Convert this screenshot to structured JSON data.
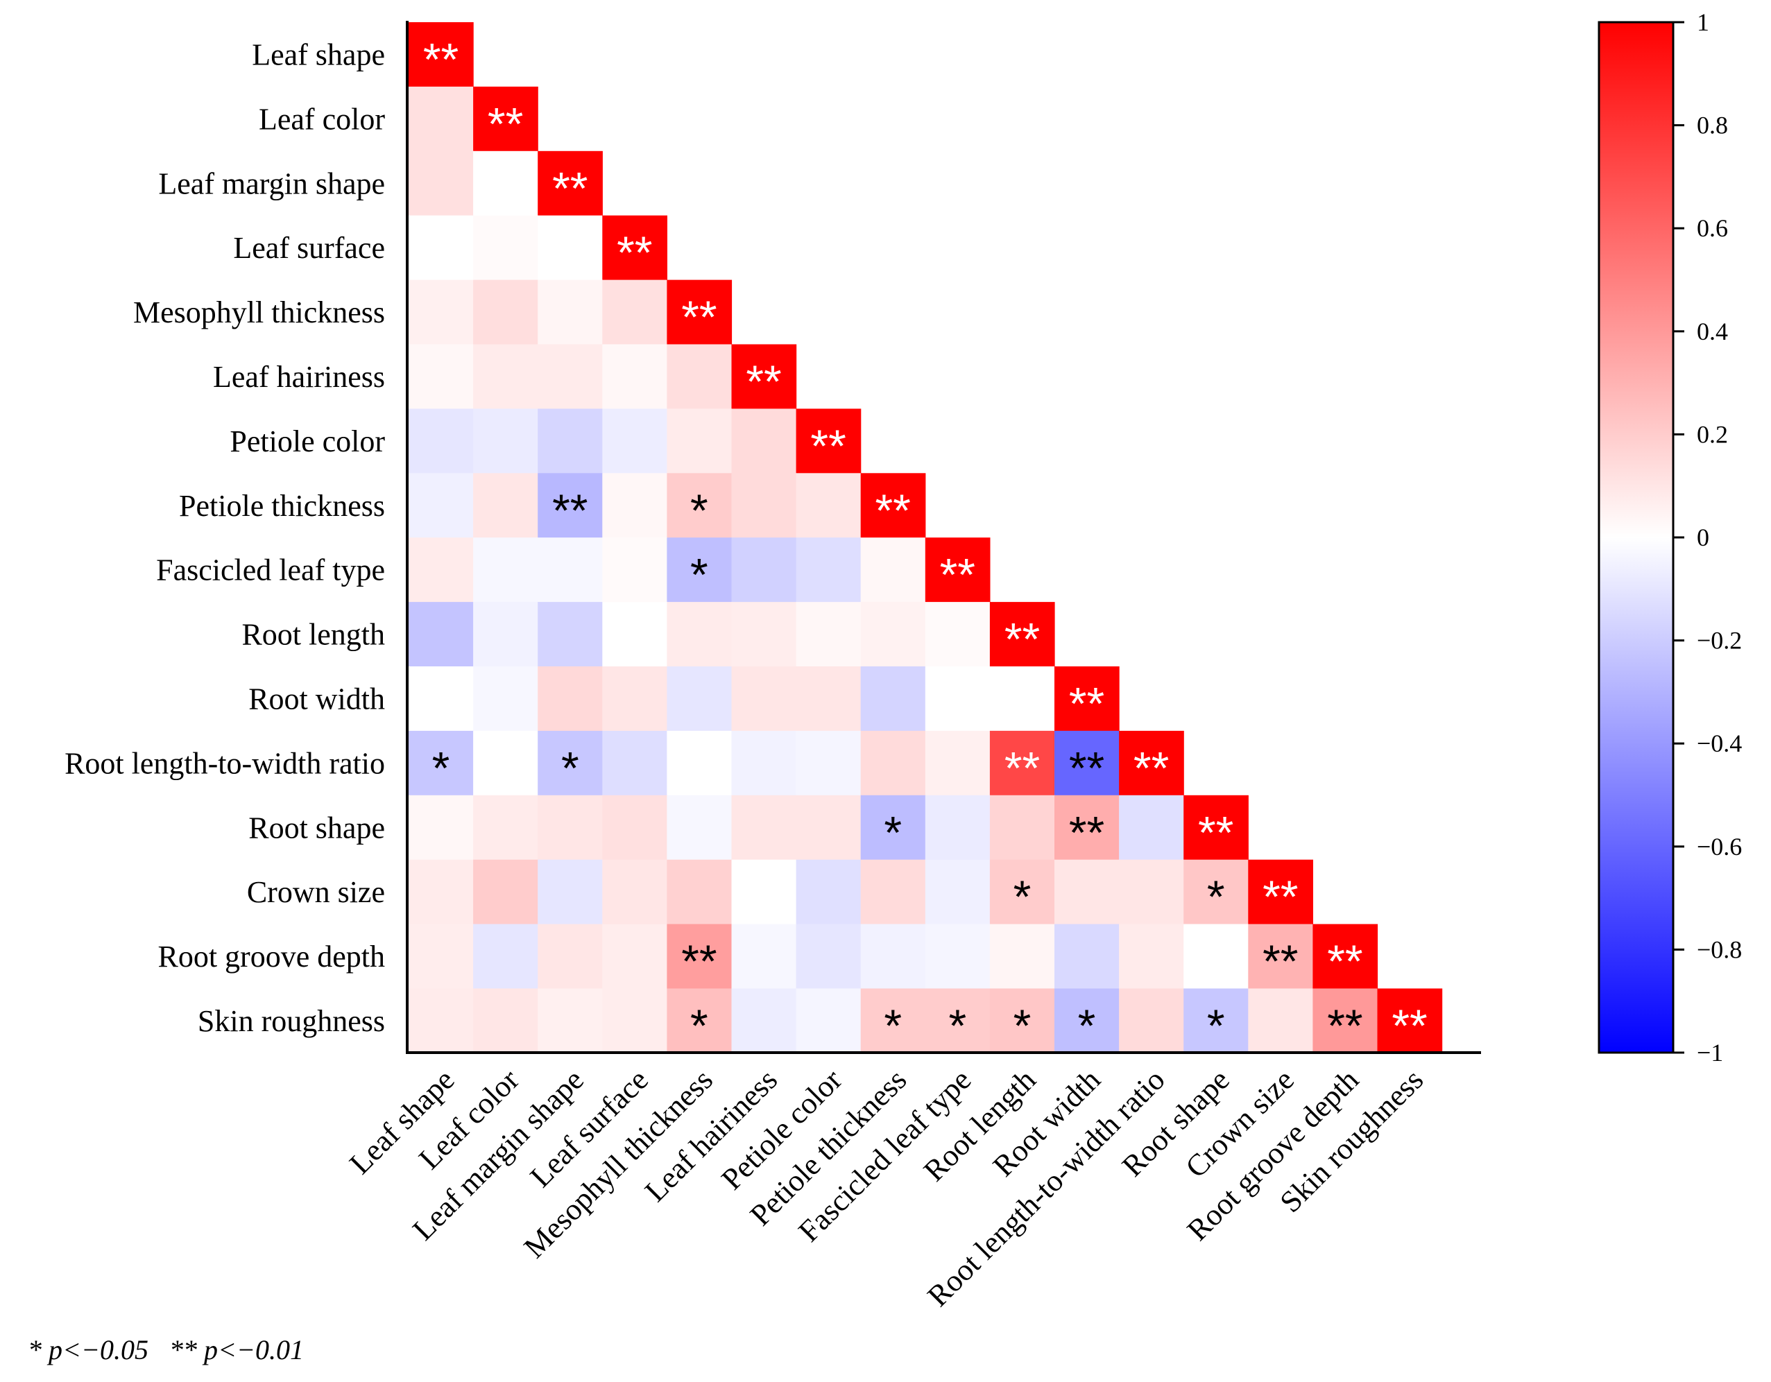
{
  "chart_data": {
    "type": "heatmap",
    "title": "",
    "variables": [
      "Leaf shape",
      "Leaf color",
      "Leaf margin shape",
      "Leaf surface",
      "Mesophyll thickness",
      "Leaf hairiness",
      "Petiole color",
      "Petiole thickness",
      "Fascicled leaf type",
      "Root length",
      "Root width",
      "Root length-to-width ratio",
      "Root shape",
      "Crown size",
      "Root groove depth",
      "Skin roughness"
    ],
    "matrix": [
      [
        1
      ],
      [
        0.12,
        1
      ],
      [
        0.12,
        0.0,
        1
      ],
      [
        0.0,
        0.02,
        0.0,
        1
      ],
      [
        0.06,
        0.13,
        0.04,
        0.12,
        1
      ],
      [
        0.03,
        0.08,
        0.08,
        0.03,
        0.13,
        1
      ],
      [
        -0.1,
        -0.08,
        -0.16,
        -0.07,
        0.08,
        0.14,
        1
      ],
      [
        -0.06,
        0.1,
        -0.28,
        0.03,
        0.2,
        0.14,
        0.1,
        1
      ],
      [
        0.08,
        -0.03,
        -0.03,
        0.02,
        -0.25,
        -0.18,
        -0.13,
        0.03,
        1
      ],
      [
        -0.23,
        -0.05,
        -0.17,
        0.0,
        0.08,
        0.07,
        0.03,
        0.05,
        0.02,
        1
      ],
      [
        0.0,
        -0.03,
        0.15,
        0.1,
        -0.1,
        0.1,
        0.1,
        -0.17,
        0.0,
        0.0,
        1
      ],
      [
        -0.22,
        0.0,
        -0.22,
        -0.13,
        0.0,
        -0.05,
        -0.04,
        0.14,
        0.06,
        0.72,
        -0.6,
        1
      ],
      [
        0.03,
        0.08,
        0.1,
        0.12,
        -0.03,
        0.1,
        0.1,
        -0.26,
        -0.08,
        0.17,
        0.32,
        -0.12,
        1
      ],
      [
        0.08,
        0.2,
        -0.1,
        0.1,
        0.18,
        0.0,
        -0.12,
        0.14,
        -0.06,
        0.2,
        0.1,
        0.1,
        0.22,
        1
      ],
      [
        0.07,
        -0.1,
        0.1,
        0.07,
        0.38,
        -0.03,
        -0.1,
        -0.05,
        -0.04,
        0.04,
        -0.15,
        0.08,
        0.0,
        0.3,
        1
      ],
      [
        0.08,
        0.1,
        0.06,
        0.07,
        0.25,
        -0.07,
        -0.04,
        0.2,
        0.2,
        0.22,
        -0.25,
        0.14,
        -0.22,
        0.1,
        0.4,
        1
      ]
    ],
    "significance": [
      [
        "**"
      ],
      [
        "",
        "**"
      ],
      [
        "",
        "",
        "**"
      ],
      [
        "",
        "",
        "",
        "**"
      ],
      [
        "",
        "",
        "",
        "",
        "**"
      ],
      [
        "",
        "",
        "",
        "",
        "",
        "**"
      ],
      [
        "",
        "",
        "",
        "",
        "",
        "",
        "**"
      ],
      [
        "",
        "",
        "**",
        "",
        "*",
        "",
        "",
        "**"
      ],
      [
        "",
        "",
        "",
        "",
        "*",
        "",
        "",
        "",
        "**"
      ],
      [
        "",
        "",
        "",
        "",
        "",
        "",
        "",
        "",
        "",
        "**"
      ],
      [
        "",
        "",
        "",
        "",
        "",
        "",
        "",
        "",
        "",
        "",
        "**"
      ],
      [
        "*",
        "",
        "*",
        "",
        "",
        "",
        "",
        "",
        "",
        "**",
        "**",
        "**"
      ],
      [
        "",
        "",
        "",
        "",
        "",
        "",
        "",
        "*",
        "",
        "",
        "**",
        "",
        "**"
      ],
      [
        "",
        "",
        "",
        "",
        "",
        "",
        "",
        "",
        "",
        "*",
        "",
        "",
        "*",
        "**"
      ],
      [
        "",
        "",
        "",
        "",
        "**",
        "",
        "",
        "",
        "",
        "",
        "",
        "",
        "",
        "**",
        "**"
      ],
      [
        "",
        "",
        "",
        "",
        "*",
        "",
        "",
        "*",
        "*",
        "*",
        "*",
        "",
        "*",
        "",
        "**",
        "**"
      ]
    ],
    "colorbar": {
      "ticks": [
        "1",
        "0.8",
        "0.6",
        "0.4",
        "0.2",
        "0",
        "−0.2",
        "−0.4",
        "−0.6",
        "−0.8",
        "−1"
      ],
      "tick_values": [
        1,
        0.8,
        0.6,
        0.4,
        0.2,
        0,
        -0.2,
        -0.4,
        -0.6,
        -0.8,
        -1
      ],
      "range": [
        -1,
        1
      ],
      "colors": {
        "positive": "#ff0000",
        "zero": "#ffffff",
        "negative": "#0000ff"
      }
    },
    "footnote": "* p<−0.05   ** p<−0.01"
  },
  "colors": {
    "axis": "#000000",
    "sig_on_strong": "#ffffff",
    "sig_on_weak": "#000000"
  }
}
